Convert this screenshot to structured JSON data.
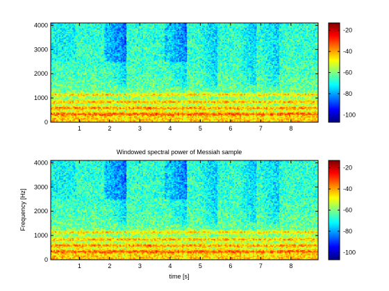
{
  "colors": {
    "background": "#ffffff",
    "colormap": [
      "#00008f",
      "#0000ff",
      "#00ffff",
      "#ffff00",
      "#ff0000",
      "#800000"
    ]
  },
  "chart_data": [
    {
      "type": "heatmap",
      "title": "",
      "xlabel": "",
      "ylabel": "",
      "xlim": [
        0.05,
        8.9
      ],
      "ylim": [
        0,
        4096
      ],
      "xticks": [
        "1",
        "2",
        "3",
        "4",
        "5",
        "6",
        "7",
        "8"
      ],
      "yticks": [
        "0",
        "1000",
        "2000",
        "3000",
        "4000"
      ],
      "colorbar": {
        "ticks": [
          "-20",
          "-40",
          "-60",
          "-80",
          "-100"
        ],
        "range": [
          -107,
          -13
        ]
      },
      "legend": "colorbar at right",
      "grid": false,
      "note_levels": {
        "onsets_s": [
          0.05,
          2.55,
          4.55,
          5.55,
          6.85,
          7.6
        ],
        "strong_bands_hz": [
          350,
          600,
          850,
          1150
        ]
      }
    },
    {
      "type": "heatmap",
      "title": "Windowed spectral power of Messiah sample",
      "xlabel": "time [s]",
      "ylabel": "Frequency [Hz]",
      "xlim": [
        0.05,
        8.9
      ],
      "ylim": [
        0,
        4096
      ],
      "xticks": [
        "1",
        "2",
        "3",
        "4",
        "5",
        "6",
        "7",
        "8"
      ],
      "yticks": [
        "0",
        "1000",
        "2000",
        "3000",
        "4000"
      ],
      "colorbar": {
        "ticks": [
          "-20",
          "-40",
          "-60",
          "-80",
          "-100"
        ],
        "range": [
          -107,
          -13
        ]
      },
      "legend": "colorbar at right",
      "grid": false,
      "note_levels": {
        "onsets_s": [
          0.05,
          2.55,
          4.55,
          5.55,
          6.85,
          7.6
        ],
        "strong_bands_hz": [
          350,
          600,
          850,
          1150
        ]
      }
    }
  ]
}
